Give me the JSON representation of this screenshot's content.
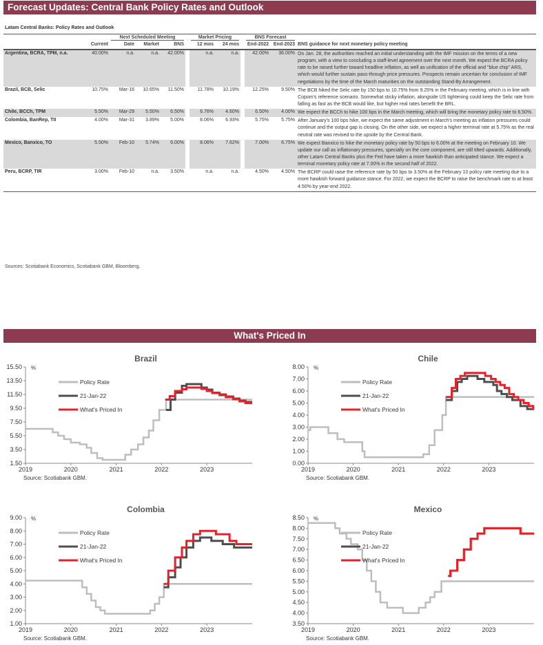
{
  "title": "Forecast Updates: Central Bank Policy Rates and Outlook",
  "table": {
    "subtitle": "Latam Central Banks: Policy Rates and Outlook",
    "groups": {
      "next": "Next Scheduled Meeting",
      "market": "Market Pricing",
      "bns": "BNS Forecast"
    },
    "headers": [
      "Current",
      "Date",
      "Market",
      "BNS",
      "12 mos",
      "24 mos",
      "End-2022",
      "End-2023",
      "BNS guidance for next monetary policy meeting"
    ],
    "rows": [
      {
        "name": "Argentina, BCRA, TPM, n.a.",
        "cells": [
          "40.00%",
          "n.a.",
          "n.a.",
          "42.00%",
          "n.a.",
          "n.a.",
          "42.00%",
          "36.00%"
        ],
        "guidance": "On Jan. 28, the authorities reached an initial understanding with the IMF mission on the terms of a new program, with a view to concluding a staff-level agreement over the next month. We expect the BCRA policy rate to be raised further toward headline inflation, as well as unification of the official and \"blue chip\" ARS, which would further sustain pass-through price pressures. Prospects remain uncertain for conclusion of IMF negotiations by the time of the March maturities on the outstanding Stand-By Arrangement."
      },
      {
        "name": "Brazil, BCB, Selic",
        "cells": [
          "10.75%",
          "Mar-16",
          "10.65%",
          "11.50%",
          "11.78%",
          "10.19%",
          "12.25%",
          "9.50%"
        ],
        "guidance": "The BCB hiked the Selic rate by 150 bps to 10.75% from 9.25% in the February meeting, which is in line with Copom's reference scenario. Somewhat sticky inflation, alongside US tightening could keep the Selic rate from falling as fast as the BCB would like, but higher real rates benefit the BRL."
      },
      {
        "name": "Chile, BCCh, TPM",
        "cells": [
          "5.50%",
          "Mar-29",
          "5.50%",
          "6.50%",
          "6.76%",
          "4.60%",
          "6.50%",
          "4.00%"
        ],
        "guidance": "We expect the BCCh to hike 100 bps in the March meeting, which will bring the monetary policy rate to 6.50%."
      },
      {
        "name": "Colombia, BanRep, TII",
        "cells": [
          "4.00%",
          "Mar-31",
          "3.89%",
          "5.00%",
          "8.06%",
          "6.93%",
          "5.75%",
          "5.75%"
        ],
        "guidance": "After January's 100 bps hike, we expect the same adjustment in March's meeting as inflation pressures could continue and the output gap is closing. On the other side, we expect a higher terminal rate at 5.75% as the real neutral rate was revised to the upside by the Central Bank."
      },
      {
        "name": "Mexico, Banxico, TO",
        "cells": [
          "5.50%",
          "Feb-10",
          "5.74%",
          "6.00%",
          "8.06%",
          "7.62%",
          "7.00%",
          "6.75%"
        ],
        "guidance": "We expect Banxico to hike the monetary policy rate by 50 bps to 6.00% at the meeting on February 10. We update our call as inflationary pressures, specially on the core component, are still tilted upwards. Additionally, other Latam Central Banks plus the Fed have taken a more hawkish than anticipated stance. We expect a terminal monetary policy rate at 7.00% in the second half of 2022."
      },
      {
        "name": "Peru, BCRP, TIR",
        "cells": [
          "3.00%",
          "Feb-10",
          "n.a.",
          "3.50%",
          "n.a.",
          "n.a.",
          "4.50%",
          "4.50%"
        ],
        "guidance": "The BCRP could raise the reference rate by 50 bps to 3.50% at the February 10 policy rate meeting due to a more hawkish forward guidance stance. For 2022, we expect the BCRP to raise the benchmark rate to at least 4.50% by year-end 2022."
      }
    ],
    "sources": "Sources: Scotiabank Economics, Scotiabank GBM, Bloomberg."
  },
  "section_title": "What's Priced In",
  "colors": {
    "brand": "#8c3b50",
    "policy": "#bdbdbd",
    "jan": "#4d4d4d",
    "priced": "#e8202a"
  },
  "chart_data": [
    {
      "type": "line",
      "title": "Brazil",
      "ylabel": "%",
      "source": "Source: Scotiabank GBM.",
      "ylim": [
        1.5,
        15.5
      ],
      "yticks": [
        "1.50",
        "3.50",
        "5.50",
        "7.50",
        "9.50",
        "11.50",
        "13.50",
        "15.50"
      ],
      "xlim": [
        2019,
        2024
      ],
      "xticks": [
        "2019",
        "2020",
        "2021",
        "2022",
        "2023"
      ],
      "legend": [
        "Policy Rate",
        "21-Jan-22",
        "What's Priced In"
      ],
      "series": [
        {
          "name": "Policy Rate",
          "points": [
            [
              2019,
              6.5
            ],
            [
              2019.6,
              6.0
            ],
            [
              2019.72,
              5.5
            ],
            [
              2019.85,
              5.0
            ],
            [
              2020.0,
              4.5
            ],
            [
              2020.2,
              4.25
            ],
            [
              2020.35,
              3.75
            ],
            [
              2020.45,
              3.0
            ],
            [
              2020.58,
              2.25
            ],
            [
              2020.7,
              2.0
            ],
            [
              2021.2,
              2.75
            ],
            [
              2021.33,
              3.5
            ],
            [
              2021.48,
              4.25
            ],
            [
              2021.6,
              5.25
            ],
            [
              2021.72,
              6.25
            ],
            [
              2021.82,
              7.75
            ],
            [
              2021.95,
              9.25
            ],
            [
              2022.1,
              10.75
            ]
          ]
        },
        {
          "name": "21-Jan-22",
          "points": [
            [
              2022.1,
              9.25
            ],
            [
              2022.2,
              10.75
            ],
            [
              2022.3,
              11.75
            ],
            [
              2022.45,
              12.75
            ],
            [
              2022.55,
              13.0
            ],
            [
              2022.88,
              12.5
            ],
            [
              2023.0,
              12.2
            ],
            [
              2023.12,
              11.75
            ],
            [
              2023.28,
              11.5
            ],
            [
              2023.42,
              11.2
            ],
            [
              2023.58,
              10.9
            ],
            [
              2023.72,
              10.6
            ],
            [
              2023.85,
              10.4
            ],
            [
              2024,
              10.4
            ]
          ]
        },
        {
          "name": "What's Priced In",
          "points": [
            [
              2022.08,
              10.75
            ],
            [
              2022.18,
              11.25
            ],
            [
              2022.3,
              12.0
            ],
            [
              2022.45,
              12.25
            ],
            [
              2022.55,
              12.5
            ],
            [
              2022.88,
              12.3
            ],
            [
              2023.0,
              12.0
            ],
            [
              2023.12,
              11.7
            ],
            [
              2023.28,
              11.4
            ],
            [
              2023.42,
              11.1
            ],
            [
              2023.58,
              10.8
            ],
            [
              2023.72,
              10.5
            ],
            [
              2023.85,
              10.25
            ],
            [
              2024,
              10.25
            ]
          ]
        }
      ]
    },
    {
      "type": "line",
      "title": "Chile",
      "ylabel": "%",
      "source": "Source: Scotiabank GBM.",
      "ylim": [
        0,
        8
      ],
      "yticks": [
        "0.00",
        "1.00",
        "2.00",
        "3.00",
        "4.00",
        "5.00",
        "6.00",
        "7.00",
        "8.00"
      ],
      "xlim": [
        2019,
        2024
      ],
      "xticks": [
        "2019",
        "2020",
        "2021",
        "2022",
        "2023"
      ],
      "legend": [
        "Policy Rate",
        "21-Jan-22",
        "What's Priced In"
      ],
      "series": [
        {
          "name": "Policy Rate",
          "points": [
            [
              2019,
              2.75
            ],
            [
              2019.05,
              3.0
            ],
            [
              2019.45,
              2.5
            ],
            [
              2019.65,
              2.0
            ],
            [
              2019.8,
              1.75
            ],
            [
              2020.2,
              1.0
            ],
            [
              2020.25,
              0.5
            ],
            [
              2021.55,
              0.75
            ],
            [
              2021.68,
              1.5
            ],
            [
              2021.8,
              2.75
            ],
            [
              2021.97,
              4.0
            ],
            [
              2022.05,
              5.5
            ]
          ]
        },
        {
          "name": "21-Jan-22",
          "points": [
            [
              2022.05,
              5.25
            ],
            [
              2022.18,
              6.0
            ],
            [
              2022.3,
              6.75
            ],
            [
              2022.4,
              7.0
            ],
            [
              2022.52,
              7.25
            ],
            [
              2022.75,
              7.0
            ],
            [
              2022.9,
              6.75
            ],
            [
              2023.1,
              6.5
            ],
            [
              2023.18,
              6.0
            ],
            [
              2023.28,
              5.75
            ],
            [
              2023.4,
              5.5
            ],
            [
              2023.52,
              5.25
            ],
            [
              2023.7,
              4.75
            ],
            [
              2023.85,
              4.5
            ],
            [
              2024,
              4.5
            ]
          ]
        },
        {
          "name": "What's Priced In",
          "points": [
            [
              2022.05,
              5.5
            ],
            [
              2022.18,
              6.25
            ],
            [
              2022.27,
              7.0
            ],
            [
              2022.37,
              7.25
            ],
            [
              2022.47,
              7.5
            ],
            [
              2022.92,
              7.25
            ],
            [
              2023.05,
              7.0
            ],
            [
              2023.15,
              6.75
            ],
            [
              2023.25,
              6.5
            ],
            [
              2023.35,
              6.25
            ],
            [
              2023.45,
              5.75
            ],
            [
              2023.55,
              5.5
            ],
            [
              2023.65,
              5.25
            ],
            [
              2023.77,
              5.0
            ],
            [
              2023.88,
              4.75
            ],
            [
              2023.98,
              4.5
            ]
          ]
        }
      ]
    },
    {
      "type": "line",
      "title": "Colombia",
      "ylabel": "%",
      "source": "Source: Scotiabank GBM.",
      "ylim": [
        1,
        9
      ],
      "yticks": [
        "1.00",
        "2.00",
        "3.00",
        "4.00",
        "5.00",
        "6.00",
        "7.00",
        "8.00",
        "9.00"
      ],
      "xlim": [
        2019,
        2024
      ],
      "xticks": [
        "2019",
        "2020",
        "2021",
        "2022",
        "2023"
      ],
      "legend": [
        "Policy Rate",
        "21-Jan-22",
        "What's Priced In"
      ],
      "series": [
        {
          "name": "Policy Rate",
          "points": [
            [
              2019,
              4.25
            ],
            [
              2020.25,
              3.75
            ],
            [
              2020.35,
              3.25
            ],
            [
              2020.45,
              2.75
            ],
            [
              2020.55,
              2.25
            ],
            [
              2020.65,
              2.0
            ],
            [
              2020.75,
              1.75
            ],
            [
              2021.75,
              2.0
            ],
            [
              2021.85,
              2.5
            ],
            [
              2021.95,
              3.0
            ],
            [
              2022.05,
              4.0
            ]
          ]
        },
        {
          "name": "21-Jan-22",
          "points": [
            [
              2022.05,
              3.75
            ],
            [
              2022.15,
              4.5
            ],
            [
              2022.3,
              5.25
            ],
            [
              2022.42,
              6.0
            ],
            [
              2022.55,
              6.75
            ],
            [
              2022.7,
              7.25
            ],
            [
              2022.85,
              7.5
            ],
            [
              2023.1,
              7.25
            ],
            [
              2023.35,
              7.0
            ],
            [
              2023.6,
              6.75
            ],
            [
              2024,
              6.75
            ]
          ]
        },
        {
          "name": "What's Priced In",
          "points": [
            [
              2022.05,
              4.0
            ],
            [
              2022.15,
              5.0
            ],
            [
              2022.3,
              6.0
            ],
            [
              2022.45,
              6.75
            ],
            [
              2022.55,
              7.25
            ],
            [
              2022.7,
              7.75
            ],
            [
              2022.85,
              8.0
            ],
            [
              2023.2,
              7.75
            ],
            [
              2023.5,
              7.25
            ],
            [
              2023.65,
              7.0
            ],
            [
              2024,
              7.0
            ]
          ]
        }
      ]
    },
    {
      "type": "line",
      "title": "Mexico",
      "ylabel": "%",
      "source": "Source: Scotiabank GBM.",
      "ylim": [
        3.5,
        8.5
      ],
      "yticks": [
        "3.50",
        "4.00",
        "4.50",
        "5.00",
        "5.50",
        "6.00",
        "6.50",
        "7.00",
        "7.50",
        "8.00",
        "8.50"
      ],
      "xlim": [
        2019,
        2024
      ],
      "xticks": [
        "2019",
        "2020",
        "2021",
        "2022",
        "2023"
      ],
      "legend": [
        "Policy Rate",
        "21-Jan-22",
        "What's Priced In"
      ],
      "series": [
        {
          "name": "Policy Rate",
          "points": [
            [
              2019,
              8.25
            ],
            [
              2019.6,
              8.0
            ],
            [
              2019.7,
              7.75
            ],
            [
              2019.85,
              7.5
            ],
            [
              2019.95,
              7.25
            ],
            [
              2020.1,
              7.0
            ],
            [
              2020.2,
              6.5
            ],
            [
              2020.3,
              6.0
            ],
            [
              2020.4,
              5.5
            ],
            [
              2020.5,
              5.0
            ],
            [
              2020.6,
              4.5
            ],
            [
              2020.75,
              4.25
            ],
            [
              2021.1,
              4.0
            ],
            [
              2021.45,
              4.25
            ],
            [
              2021.6,
              4.5
            ],
            [
              2021.7,
              4.75
            ],
            [
              2021.8,
              5.0
            ],
            [
              2021.95,
              5.5
            ],
            [
              2022.1,
              5.5
            ]
          ]
        },
        {
          "name": "21-Jan-22",
          "points": [
            [
              2022.1,
              5.75
            ],
            [
              2022.15,
              6.0
            ],
            [
              2022.3,
              6.5
            ],
            [
              2022.45,
              7.0
            ],
            [
              2022.6,
              7.5
            ],
            [
              2022.75,
              7.75
            ],
            [
              2022.9,
              8.0
            ],
            [
              2023.7,
              7.75
            ],
            [
              2024,
              7.75
            ]
          ]
        },
        {
          "name": "What's Priced In",
          "points": [
            [
              2022.1,
              5.75
            ],
            [
              2022.15,
              6.0
            ],
            [
              2022.3,
              6.5
            ],
            [
              2022.45,
              7.0
            ],
            [
              2022.6,
              7.5
            ],
            [
              2022.75,
              7.75
            ],
            [
              2022.9,
              8.0
            ],
            [
              2023.7,
              7.75
            ],
            [
              2024,
              7.75
            ]
          ]
        }
      ]
    }
  ]
}
